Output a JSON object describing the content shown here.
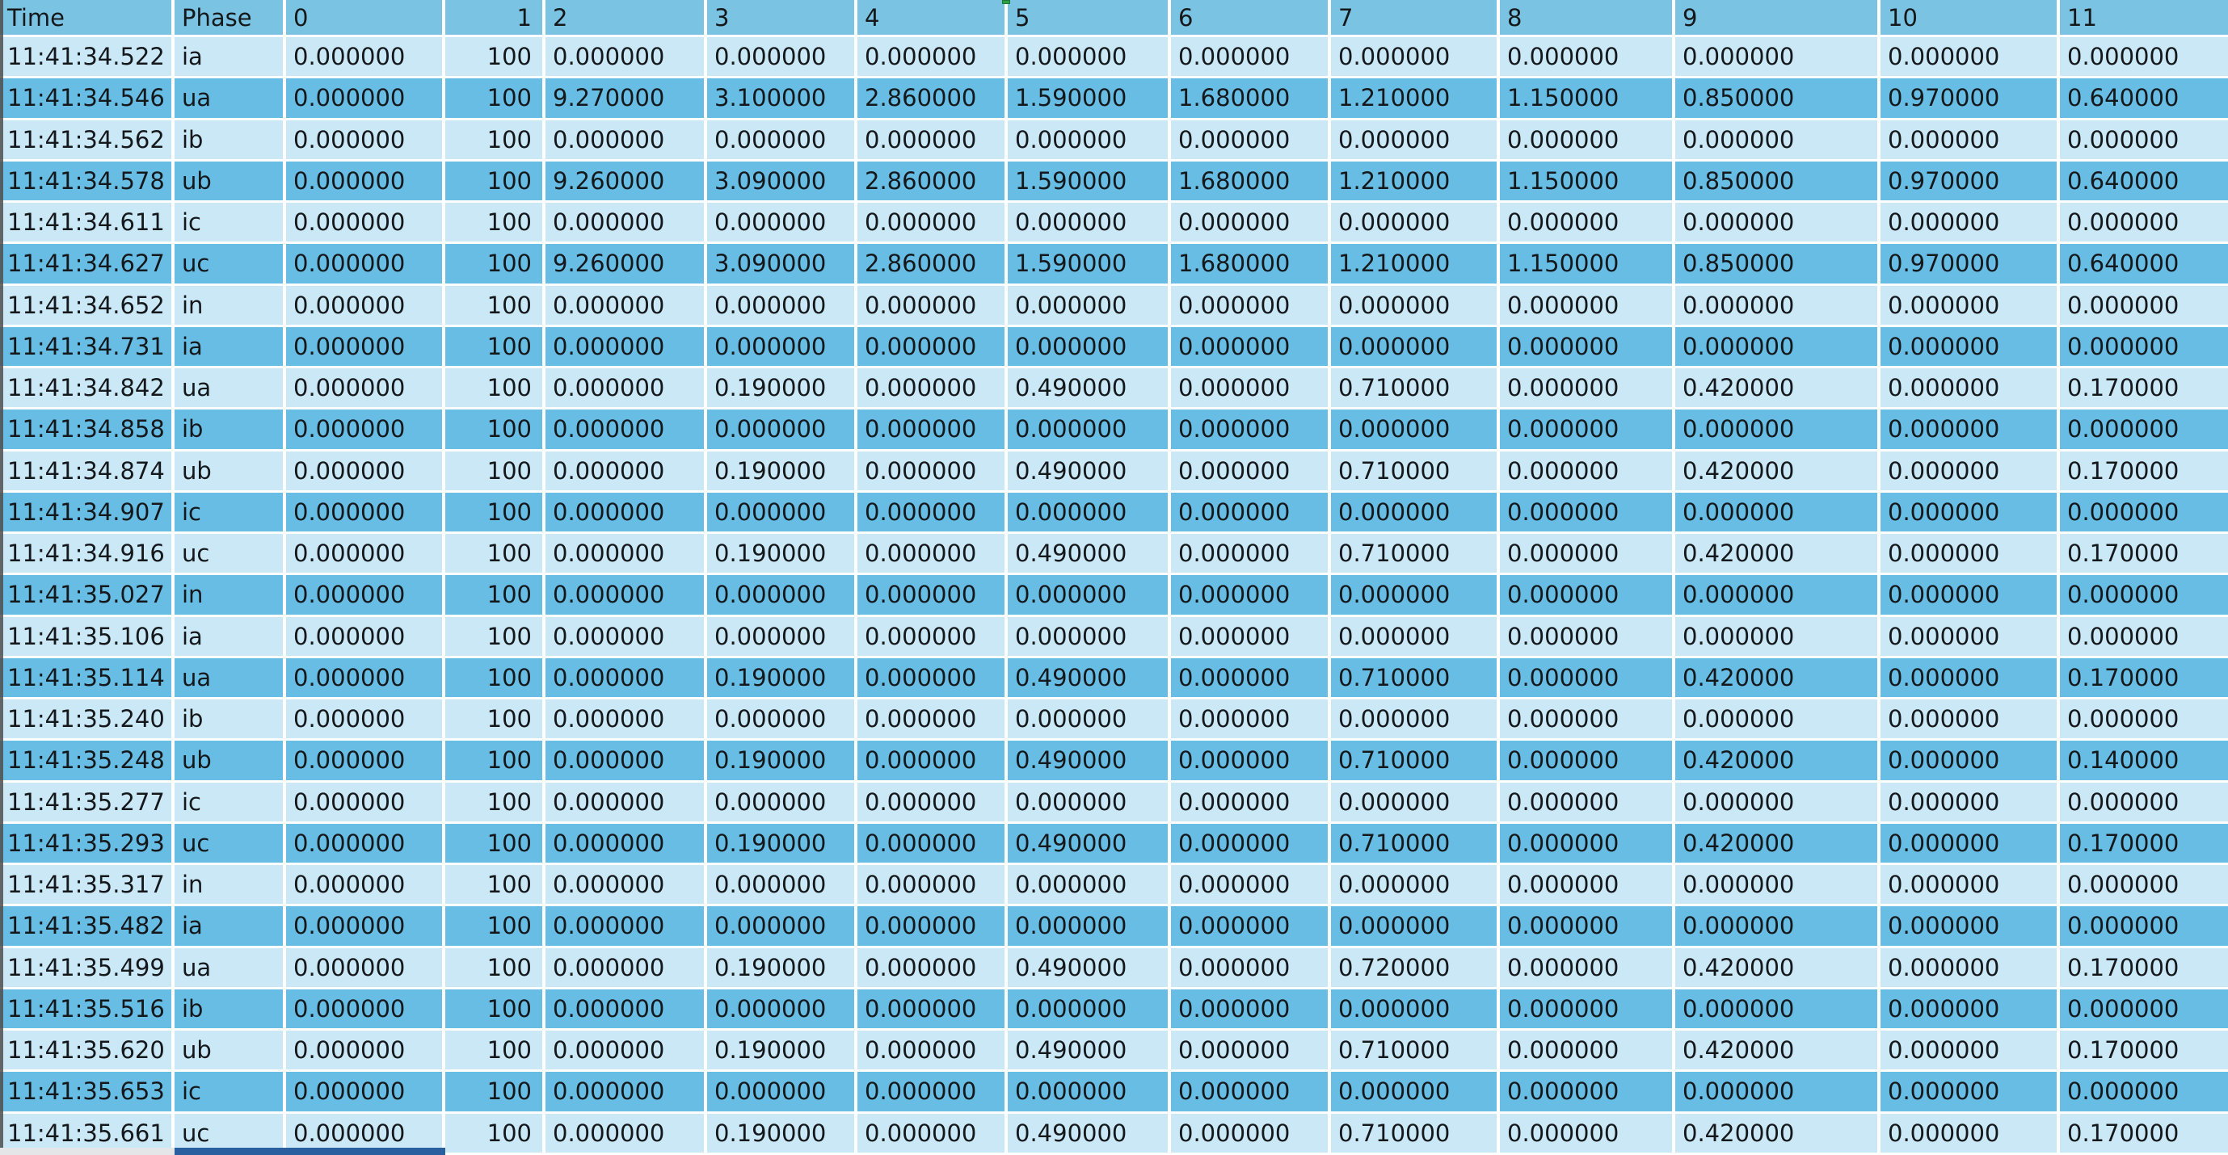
{
  "table": {
    "headers": [
      "Time",
      "Phase",
      "0",
      "1",
      "2",
      "3",
      "4",
      "5",
      "6",
      "7",
      "8",
      "9",
      "10",
      "11"
    ],
    "rows": [
      {
        "cells": [
          "11:41:34.522",
          "ia",
          "0.000000",
          "100",
          "0.000000",
          "0.000000",
          "0.000000",
          "0.000000",
          "0.000000",
          "0.000000",
          "0.000000",
          "0.000000",
          "0.000000",
          "0.000000"
        ]
      },
      {
        "cells": [
          "11:41:34.546",
          "ua",
          "0.000000",
          "100",
          "9.270000",
          "3.100000",
          "2.860000",
          "1.590000",
          "1.680000",
          "1.210000",
          "1.150000",
          "0.850000",
          "0.970000",
          "0.640000"
        ]
      },
      {
        "cells": [
          "11:41:34.562",
          "ib",
          "0.000000",
          "100",
          "0.000000",
          "0.000000",
          "0.000000",
          "0.000000",
          "0.000000",
          "0.000000",
          "0.000000",
          "0.000000",
          "0.000000",
          "0.000000"
        ]
      },
      {
        "cells": [
          "11:41:34.578",
          "ub",
          "0.000000",
          "100",
          "9.260000",
          "3.090000",
          "2.860000",
          "1.590000",
          "1.680000",
          "1.210000",
          "1.150000",
          "0.850000",
          "0.970000",
          "0.640000"
        ]
      },
      {
        "cells": [
          "11:41:34.611",
          "ic",
          "0.000000",
          "100",
          "0.000000",
          "0.000000",
          "0.000000",
          "0.000000",
          "0.000000",
          "0.000000",
          "0.000000",
          "0.000000",
          "0.000000",
          "0.000000"
        ]
      },
      {
        "cells": [
          "11:41:34.627",
          "uc",
          "0.000000",
          "100",
          "9.260000",
          "3.090000",
          "2.860000",
          "1.590000",
          "1.680000",
          "1.210000",
          "1.150000",
          "0.850000",
          "0.970000",
          "0.640000"
        ]
      },
      {
        "cells": [
          "11:41:34.652",
          "in",
          "0.000000",
          "100",
          "0.000000",
          "0.000000",
          "0.000000",
          "0.000000",
          "0.000000",
          "0.000000",
          "0.000000",
          "0.000000",
          "0.000000",
          "0.000000"
        ]
      },
      {
        "cells": [
          "11:41:34.731",
          "ia",
          "0.000000",
          "100",
          "0.000000",
          "0.000000",
          "0.000000",
          "0.000000",
          "0.000000",
          "0.000000",
          "0.000000",
          "0.000000",
          "0.000000",
          "0.000000"
        ]
      },
      {
        "cells": [
          "11:41:34.842",
          "ua",
          "0.000000",
          "100",
          "0.000000",
          "0.190000",
          "0.000000",
          "0.490000",
          "0.000000",
          "0.710000",
          "0.000000",
          "0.420000",
          "0.000000",
          "0.170000"
        ]
      },
      {
        "cells": [
          "11:41:34.858",
          "ib",
          "0.000000",
          "100",
          "0.000000",
          "0.000000",
          "0.000000",
          "0.000000",
          "0.000000",
          "0.000000",
          "0.000000",
          "0.000000",
          "0.000000",
          "0.000000"
        ]
      },
      {
        "cells": [
          "11:41:34.874",
          "ub",
          "0.000000",
          "100",
          "0.000000",
          "0.190000",
          "0.000000",
          "0.490000",
          "0.000000",
          "0.710000",
          "0.000000",
          "0.420000",
          "0.000000",
          "0.170000"
        ]
      },
      {
        "cells": [
          "11:41:34.907",
          "ic",
          "0.000000",
          "100",
          "0.000000",
          "0.000000",
          "0.000000",
          "0.000000",
          "0.000000",
          "0.000000",
          "0.000000",
          "0.000000",
          "0.000000",
          "0.000000"
        ]
      },
      {
        "cells": [
          "11:41:34.916",
          "uc",
          "0.000000",
          "100",
          "0.000000",
          "0.190000",
          "0.000000",
          "0.490000",
          "0.000000",
          "0.710000",
          "0.000000",
          "0.420000",
          "0.000000",
          "0.170000"
        ]
      },
      {
        "cells": [
          "11:41:35.027",
          "in",
          "0.000000",
          "100",
          "0.000000",
          "0.000000",
          "0.000000",
          "0.000000",
          "0.000000",
          "0.000000",
          "0.000000",
          "0.000000",
          "0.000000",
          "0.000000"
        ]
      },
      {
        "cells": [
          "11:41:35.106",
          "ia",
          "0.000000",
          "100",
          "0.000000",
          "0.000000",
          "0.000000",
          "0.000000",
          "0.000000",
          "0.000000",
          "0.000000",
          "0.000000",
          "0.000000",
          "0.000000"
        ]
      },
      {
        "cells": [
          "11:41:35.114",
          "ua",
          "0.000000",
          "100",
          "0.000000",
          "0.190000",
          "0.000000",
          "0.490000",
          "0.000000",
          "0.710000",
          "0.000000",
          "0.420000",
          "0.000000",
          "0.170000"
        ]
      },
      {
        "cells": [
          "11:41:35.240",
          "ib",
          "0.000000",
          "100",
          "0.000000",
          "0.000000",
          "0.000000",
          "0.000000",
          "0.000000",
          "0.000000",
          "0.000000",
          "0.000000",
          "0.000000",
          "0.000000"
        ]
      },
      {
        "cells": [
          "11:41:35.248",
          "ub",
          "0.000000",
          "100",
          "0.000000",
          "0.190000",
          "0.000000",
          "0.490000",
          "0.000000",
          "0.710000",
          "0.000000",
          "0.420000",
          "0.000000",
          "0.140000"
        ]
      },
      {
        "cells": [
          "11:41:35.277",
          "ic",
          "0.000000",
          "100",
          "0.000000",
          "0.000000",
          "0.000000",
          "0.000000",
          "0.000000",
          "0.000000",
          "0.000000",
          "0.000000",
          "0.000000",
          "0.000000"
        ]
      },
      {
        "cells": [
          "11:41:35.293",
          "uc",
          "0.000000",
          "100",
          "0.000000",
          "0.190000",
          "0.000000",
          "0.490000",
          "0.000000",
          "0.710000",
          "0.000000",
          "0.420000",
          "0.000000",
          "0.170000"
        ]
      },
      {
        "cells": [
          "11:41:35.317",
          "in",
          "0.000000",
          "100",
          "0.000000",
          "0.000000",
          "0.000000",
          "0.000000",
          "0.000000",
          "0.000000",
          "0.000000",
          "0.000000",
          "0.000000",
          "0.000000"
        ]
      },
      {
        "cells": [
          "11:41:35.482",
          "ia",
          "0.000000",
          "100",
          "0.000000",
          "0.000000",
          "0.000000",
          "0.000000",
          "0.000000",
          "0.000000",
          "0.000000",
          "0.000000",
          "0.000000",
          "0.000000"
        ]
      },
      {
        "cells": [
          "11:41:35.499",
          "ua",
          "0.000000",
          "100",
          "0.000000",
          "0.190000",
          "0.000000",
          "0.490000",
          "0.000000",
          "0.720000",
          "0.000000",
          "0.420000",
          "0.000000",
          "0.170000"
        ]
      },
      {
        "cells": [
          "11:41:35.516",
          "ib",
          "0.000000",
          "100",
          "0.000000",
          "0.000000",
          "0.000000",
          "0.000000",
          "0.000000",
          "0.000000",
          "0.000000",
          "0.000000",
          "0.000000",
          "0.000000"
        ]
      },
      {
        "cells": [
          "11:41:35.620",
          "ub",
          "0.000000",
          "100",
          "0.000000",
          "0.190000",
          "0.000000",
          "0.490000",
          "0.000000",
          "0.710000",
          "0.000000",
          "0.420000",
          "0.000000",
          "0.170000"
        ]
      },
      {
        "cells": [
          "11:41:35.653",
          "ic",
          "0.000000",
          "100",
          "0.000000",
          "0.000000",
          "0.000000",
          "0.000000",
          "0.000000",
          "0.000000",
          "0.000000",
          "0.000000",
          "0.000000",
          "0.000000"
        ]
      },
      {
        "cells": [
          "11:41:35.661",
          "uc",
          "0.000000",
          "100",
          "0.000000",
          "0.190000",
          "0.000000",
          "0.490000",
          "0.000000",
          "0.710000",
          "0.000000",
          "0.420000",
          "0.000000",
          "0.170000"
        ]
      }
    ]
  },
  "colors": {
    "header_bg": "#7ac3e3",
    "row_light": "#cbe8f7",
    "row_dark": "#68bde5",
    "grid_line": "#ffffff",
    "text": "#15181b",
    "left_border": "#4e4e4e",
    "marker_green": "#2ca048",
    "scrollbar_thumb": "#295f9e",
    "corner_strip": "#e4e6e8"
  }
}
